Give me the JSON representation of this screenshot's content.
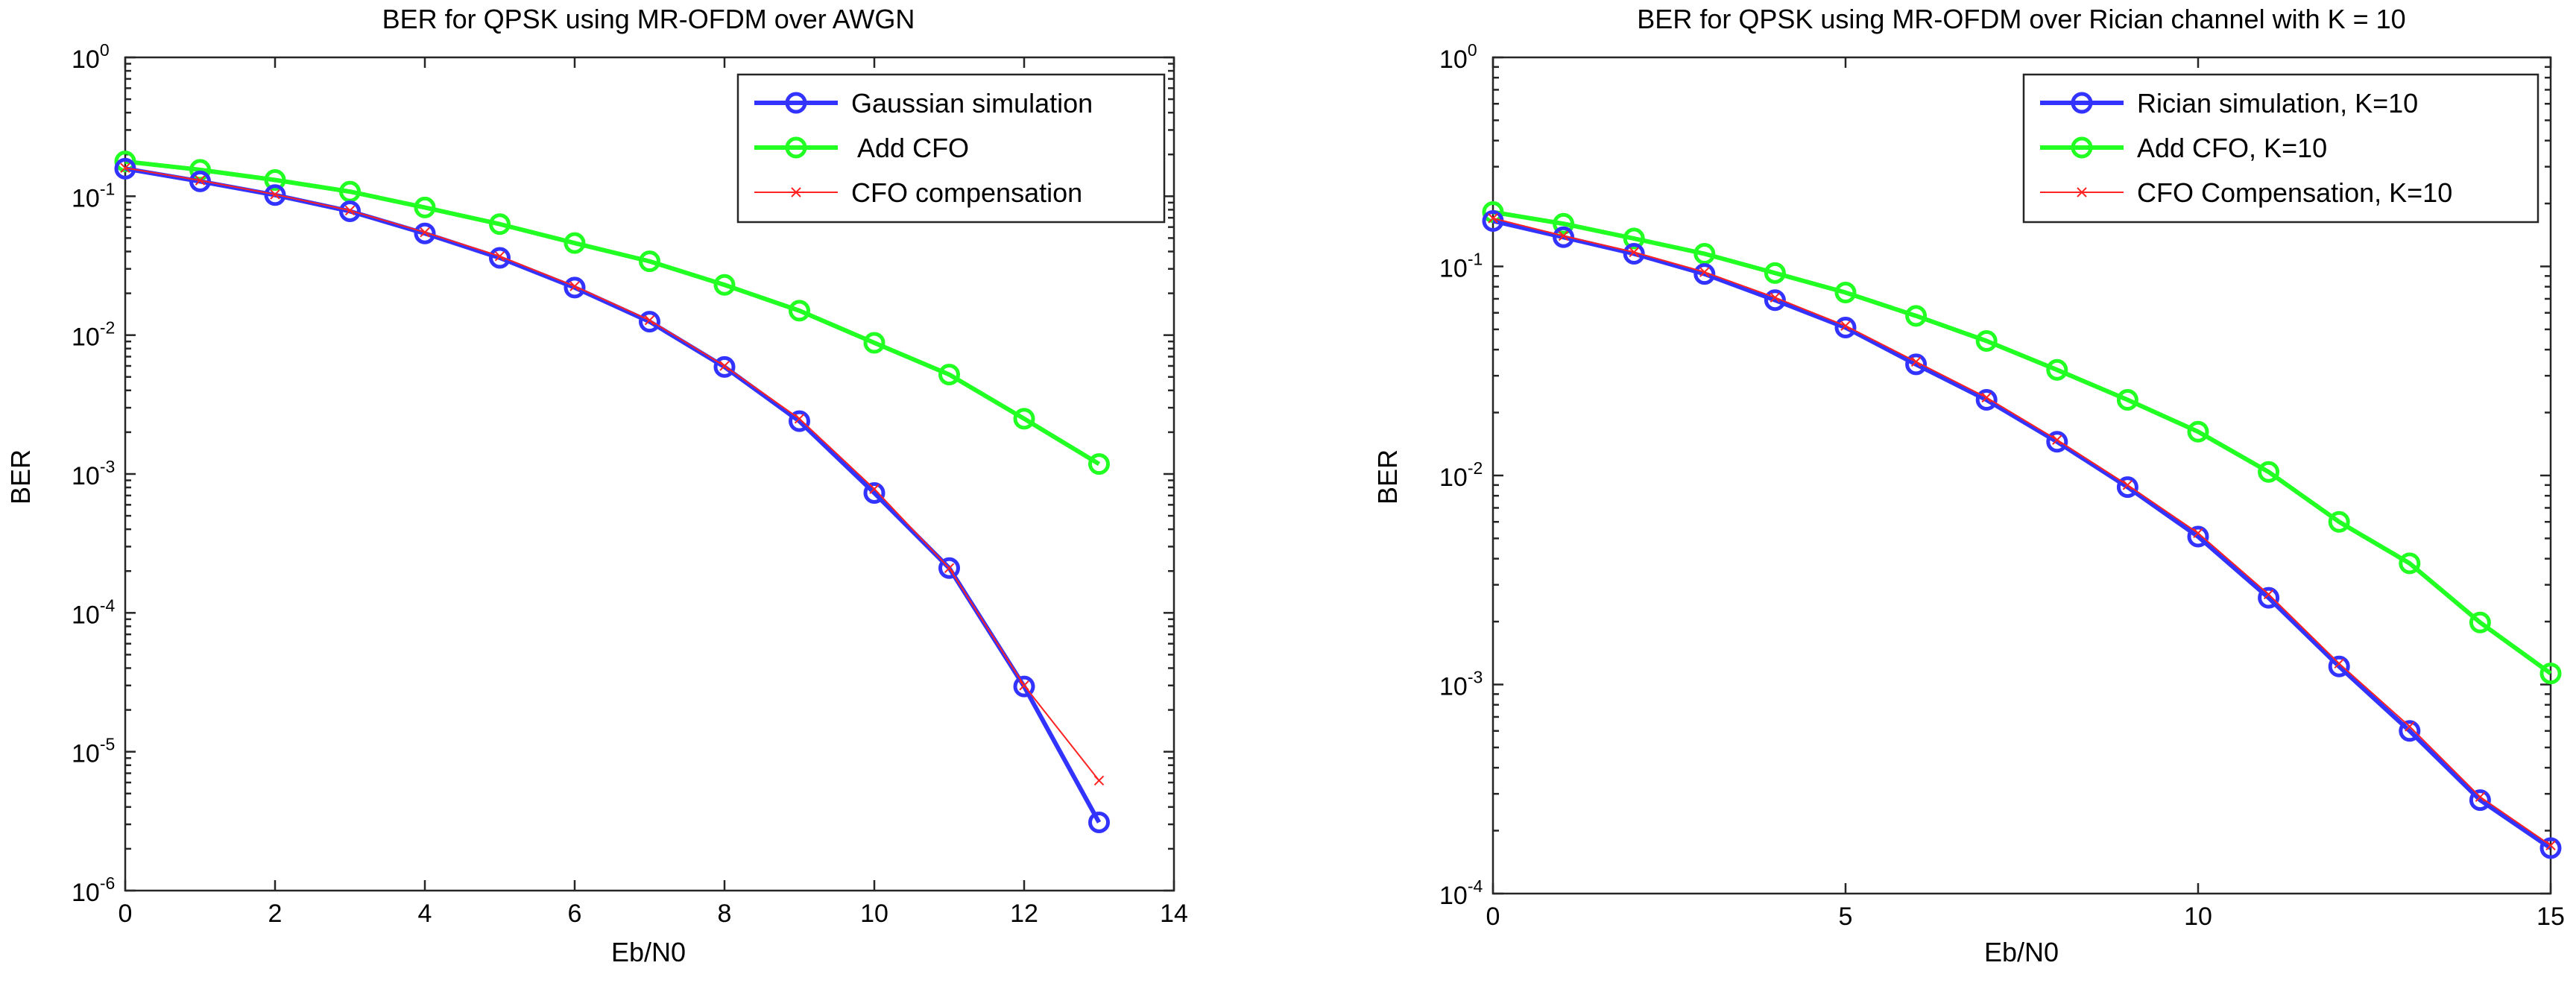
{
  "chart_data": [
    {
      "type": "line",
      "title": "BER for QPSK using MR-OFDM over AWGN",
      "xlabel": "Eb/N0",
      "ylabel": "BER",
      "xlim": [
        0,
        14
      ],
      "ylim": [
        1e-06,
        1
      ],
      "yscale": "log",
      "xticks": [
        0,
        2,
        4,
        6,
        8,
        10,
        12,
        14
      ],
      "ytick_exponents": [
        -6,
        -5,
        -4,
        -3,
        -2,
        -1,
        0
      ],
      "legend_position": "top-right",
      "series": [
        {
          "name": "Gaussian simulation",
          "color": "#3333ff",
          "marker": "circle",
          "x": [
            0,
            1,
            2,
            3,
            4,
            5,
            6,
            7,
            8,
            9,
            10,
            11,
            12,
            13
          ],
          "y": [
            0.158,
            0.128,
            0.102,
            0.078,
            0.054,
            0.036,
            0.022,
            0.0125,
            0.0059,
            0.0024,
            0.00073,
            0.00021,
            2.95e-05,
            3.1e-06
          ]
        },
        {
          "name": " Add CFO",
          "color": "#22ff22",
          "marker": "circle",
          "x": [
            0,
            1,
            2,
            3,
            4,
            5,
            6,
            7,
            8,
            9,
            10,
            11,
            12,
            13
          ],
          "y": [
            0.178,
            0.155,
            0.131,
            0.108,
            0.083,
            0.063,
            0.046,
            0.034,
            0.023,
            0.015,
            0.0088,
            0.0052,
            0.0025,
            0.00118
          ]
        },
        {
          "name": "CFO compensation",
          "color": "#ff2222",
          "marker": "x",
          "x": [
            0,
            1,
            2,
            3,
            4,
            5,
            6,
            7,
            8,
            9,
            10,
            11,
            12,
            13
          ],
          "y": [
            0.16,
            0.13,
            0.103,
            0.079,
            0.055,
            0.037,
            0.0225,
            0.0128,
            0.006,
            0.0025,
            0.00078,
            0.00021,
            3e-05,
            6.2e-06
          ]
        }
      ]
    },
    {
      "type": "line",
      "title": "BER for QPSK using MR-OFDM over Rician channel with K = 10",
      "xlabel": "Eb/N0",
      "ylabel": "BER",
      "xlim": [
        0,
        15
      ],
      "ylim": [
        0.0001,
        1
      ],
      "yscale": "log",
      "xticks": [
        0,
        5,
        10,
        15
      ],
      "ytick_exponents": [
        -4,
        -3,
        -2,
        -1,
        0
      ],
      "legend_position": "top-right",
      "series": [
        {
          "name": "Rician simulation, K=10",
          "color": "#3333ff",
          "marker": "circle",
          "x": [
            0,
            1,
            2,
            3,
            4,
            5,
            6,
            7,
            8,
            9,
            10,
            11,
            12,
            13,
            14,
            15
          ],
          "y": [
            0.165,
            0.138,
            0.115,
            0.092,
            0.069,
            0.051,
            0.034,
            0.023,
            0.0145,
            0.0088,
            0.0051,
            0.0026,
            0.00122,
            0.0006,
            0.00028,
            0.000165
          ]
        },
        {
          "name": "Add CFO, K=10",
          "color": "#22ff22",
          "marker": "circle",
          "x": [
            0,
            1,
            2,
            3,
            4,
            5,
            6,
            7,
            8,
            9,
            10,
            11,
            12,
            13,
            14,
            15
          ],
          "y": [
            0.182,
            0.16,
            0.136,
            0.115,
            0.093,
            0.075,
            0.058,
            0.044,
            0.032,
            0.023,
            0.0162,
            0.0104,
            0.006,
            0.0038,
            0.00198,
            0.00113
          ]
        },
        {
          "name": "CFO Compensation, K=10",
          "color": "#ff2222",
          "marker": "x",
          "x": [
            0,
            1,
            2,
            3,
            4,
            5,
            6,
            7,
            8,
            9,
            10,
            11,
            12,
            13,
            14,
            15
          ],
          "y": [
            0.17,
            0.14,
            0.117,
            0.094,
            0.071,
            0.052,
            0.035,
            0.0236,
            0.0148,
            0.009,
            0.0053,
            0.0027,
            0.00126,
            0.00063,
            0.00029,
            0.00017
          ]
        }
      ]
    }
  ]
}
